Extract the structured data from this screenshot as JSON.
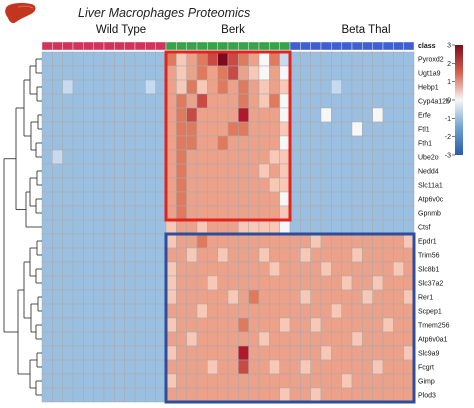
{
  "title": "Liver Macrophages Proteomics",
  "logo_icon": "liver-icon",
  "chart_data": {
    "type": "heatmap",
    "title": "Liver Macrophages Proteomics",
    "class_label": "class",
    "groups": [
      {
        "name": "Wild Type",
        "n": 12,
        "color": "#d1335b"
      },
      {
        "name": "Berk",
        "n": 12,
        "color": "#3aa14b"
      },
      {
        "name": "Beta Thal",
        "n": 12,
        "color": "#3f5fd0"
      }
    ],
    "rows": [
      "Pyroxd2",
      "Ugt1a9",
      "Hebp1",
      "Cyp4a12b",
      "Erfe",
      "Ftl1",
      "Fth1",
      "Ube2o",
      "Nedd4",
      "Slc11a1",
      "Atp6v0c",
      "Gpnmb",
      "Ctsf",
      "Epdr1",
      "Trim56",
      "Slc8b1",
      "Slc37a2",
      "Rer1",
      "Scpep1",
      "Tmem256",
      "Atp6v0a1",
      "Slc9a9",
      "Fcgrt",
      "Gimp",
      "Plod3"
    ],
    "colorscale": {
      "min": -3,
      "max": 3,
      "ticks": [
        3,
        2,
        1,
        0,
        -1,
        -2,
        -3
      ],
      "low": "#2b5aa8",
      "mid": "#f7f7f7",
      "high": "#7d0b1e"
    },
    "values": [
      [
        -1,
        -1,
        -1,
        -1,
        -1,
        -1,
        -1,
        -1,
        -1,
        -1,
        -1,
        -1,
        1.5,
        0.5,
        1,
        1.5,
        2,
        3,
        2,
        1.5,
        1,
        0,
        1.5,
        -0.5,
        -1,
        -1,
        -1,
        -1,
        -1,
        -1,
        -1,
        -1,
        -1,
        -1,
        -1,
        -1
      ],
      [
        -1,
        -1,
        -1,
        -1,
        -1,
        -1,
        -1,
        -1,
        -1,
        -1,
        -1,
        -1,
        1,
        0.5,
        1,
        1.5,
        1,
        1.5,
        2,
        1,
        0.5,
        0,
        1,
        0,
        -1,
        -1,
        -1,
        -1,
        -1,
        -1,
        -1,
        -1,
        -1,
        -1,
        -1,
        -1
      ],
      [
        -1,
        -1,
        -0.5,
        -1,
        -1,
        -1,
        -1,
        -1,
        -1,
        -1,
        -0.5,
        -1,
        1,
        0.5,
        1.5,
        0.5,
        1,
        1.5,
        1,
        1.5,
        1,
        0.5,
        1,
        0.5,
        -1,
        -1,
        -1,
        -1,
        -0.5,
        -1,
        -1,
        -1,
        -1,
        -1,
        -1,
        -1
      ],
      [
        -1,
        -1,
        -1,
        -1,
        -1,
        -1,
        -1,
        -1,
        -1,
        -1,
        -1,
        -1,
        1,
        1.5,
        1,
        2,
        1,
        1,
        1,
        1.5,
        1,
        0.5,
        1.5,
        0,
        -1,
        -1,
        -1,
        -1,
        -1,
        -1,
        -1,
        -1,
        -1,
        -1,
        -1,
        -1
      ],
      [
        -1,
        -1,
        -1,
        -1,
        -1,
        -1,
        -1,
        -1,
        -1,
        -1,
        -1,
        -1,
        1,
        1.5,
        2,
        1,
        1,
        1,
        1,
        2.5,
        1,
        1,
        1,
        0,
        -1,
        -1,
        -1,
        0,
        -1,
        -1,
        -1,
        -1,
        0,
        -1,
        -1,
        -1
      ],
      [
        -1,
        -1,
        -1,
        -1,
        -1,
        -1,
        -1,
        -1,
        -1,
        -1,
        -1,
        -1,
        1,
        1.5,
        1.5,
        1,
        1,
        1,
        1.5,
        1.5,
        1,
        1,
        1,
        0.5,
        -1,
        -1,
        -1,
        -1,
        -1,
        -1,
        0,
        -1,
        -1,
        -1,
        -1,
        -1
      ],
      [
        -1,
        -1,
        -1,
        -1,
        -1,
        -1,
        -1,
        -1,
        -1,
        -1,
        -1,
        -1,
        1,
        1.5,
        1.5,
        1,
        1,
        1.5,
        1,
        1,
        1,
        1,
        1,
        0,
        -1,
        -1,
        -1,
        -1,
        -1,
        -1,
        -1,
        -1,
        -1,
        -1,
        -1,
        -1
      ],
      [
        -1,
        -0.5,
        -1,
        -1,
        -1,
        -1,
        -1,
        -1,
        -1,
        -1,
        -1,
        -1,
        1,
        1.5,
        1,
        1,
        1,
        1,
        1,
        1,
        1,
        1,
        0.5,
        0.5,
        -1,
        -1,
        -1,
        -1,
        -1,
        -1,
        -1,
        -1,
        -1,
        -1,
        -1,
        -1
      ],
      [
        -1,
        -1,
        -1,
        -1,
        -1,
        -1,
        -1,
        -1,
        -1,
        -1,
        -1,
        -1,
        1,
        1.5,
        1,
        1,
        1,
        1,
        1,
        1,
        1,
        0.5,
        1,
        0.5,
        -1,
        -1,
        -1,
        -1,
        -1,
        -1,
        -1,
        -1,
        -1,
        -1,
        -1,
        -1
      ],
      [
        -1,
        -1,
        -1,
        -1,
        -1,
        -1,
        -1,
        -1,
        -1,
        -1,
        -1,
        -1,
        1,
        1.5,
        1,
        1,
        1,
        1,
        1,
        1,
        1,
        1,
        0.5,
        0.5,
        -1,
        -1,
        -1,
        -1,
        -1,
        -1,
        -1,
        -1,
        -1,
        -1,
        -1,
        -1
      ],
      [
        -1,
        -1,
        -1,
        -1,
        -1,
        -1,
        -1,
        -1,
        -1,
        -1,
        -1,
        -1,
        1,
        1.5,
        1,
        1,
        1,
        1,
        1,
        1,
        1,
        1,
        1,
        0,
        -1,
        -1,
        -1,
        -1,
        -1,
        -1,
        -1,
        -1,
        -1,
        -1,
        -1,
        -1
      ],
      [
        -1,
        -1,
        -1,
        -1,
        -1,
        -1,
        -1,
        -1,
        -1,
        -1,
        -1,
        -1,
        1,
        1.5,
        1,
        1,
        1,
        1,
        1,
        1,
        1,
        1,
        1,
        0.5,
        -1,
        -1,
        -1,
        -1,
        -1,
        -1,
        -1,
        -1,
        -1,
        -1,
        -1,
        -1
      ],
      [
        -1,
        -1,
        -1,
        -1,
        -1,
        -1,
        -1,
        -1,
        -1,
        -1,
        -1,
        -1,
        0.5,
        1,
        1,
        0.5,
        1,
        1,
        1,
        0.5,
        0.5,
        0.5,
        0.5,
        0,
        -1,
        -1,
        -1,
        -1,
        -1,
        -1,
        -1,
        -1,
        -1,
        -1,
        -1,
        -1
      ],
      [
        -1,
        -1,
        -1,
        -1,
        -1,
        -1,
        -1,
        -1,
        -1,
        -1,
        -1,
        -1,
        0.5,
        1,
        1,
        1.5,
        1,
        1,
        1,
        1,
        1,
        1,
        1,
        1,
        1,
        1,
        0.5,
        1,
        1,
        1,
        1,
        1,
        1,
        1,
        1,
        0.5
      ],
      [
        -1,
        -1,
        -1,
        -1,
        -1,
        -1,
        -1,
        -1,
        -1,
        -1,
        -1,
        -1,
        1,
        1,
        0.5,
        1,
        1,
        0.5,
        1,
        1,
        1,
        0.5,
        1,
        1,
        1,
        0.5,
        1,
        1,
        1,
        1,
        0.5,
        1,
        1,
        1,
        1,
        1
      ],
      [
        -1,
        -1,
        -1,
        -1,
        -1,
        -1,
        -1,
        -1,
        -1,
        -1,
        -1,
        -1,
        0.5,
        1,
        1,
        1,
        1,
        1,
        1,
        1,
        1,
        1,
        0.5,
        1,
        1,
        1,
        1,
        0.5,
        1,
        1,
        1,
        1,
        1,
        1,
        0.5,
        1
      ],
      [
        -1,
        -1,
        -1,
        -1,
        -1,
        -1,
        -1,
        -1,
        -1,
        -1,
        -1,
        -1,
        0.5,
        1,
        1,
        1,
        0.5,
        1,
        1,
        1,
        1,
        1,
        1,
        1,
        1,
        1,
        1,
        1,
        1,
        0.5,
        1,
        1,
        0.5,
        1,
        1,
        1
      ],
      [
        -1,
        -1,
        -1,
        -1,
        -1,
        -1,
        -1,
        -1,
        -1,
        -1,
        -1,
        -1,
        0.5,
        1,
        1,
        1,
        1,
        1,
        0.5,
        1,
        1.5,
        1,
        1,
        1,
        1,
        0.5,
        1,
        1,
        1,
        1,
        1,
        0.5,
        1,
        1,
        1,
        0.5
      ],
      [
        -1,
        -1,
        -1,
        -1,
        -1,
        -1,
        -1,
        -1,
        -1,
        -1,
        -1,
        -1,
        1,
        1,
        1,
        0.5,
        1,
        1,
        1,
        1,
        1,
        1,
        1,
        1,
        1,
        1,
        1,
        1,
        0.5,
        1,
        1,
        1,
        1,
        1,
        1,
        1
      ],
      [
        -1,
        -1,
        -1,
        -1,
        -1,
        -1,
        -1,
        -1,
        -1,
        -1,
        -1,
        -1,
        0.5,
        1,
        1,
        1,
        1,
        1,
        1,
        1.5,
        1,
        1,
        1,
        0.5,
        1,
        1,
        0.5,
        1,
        1,
        1,
        1,
        1,
        1,
        0.5,
        1,
        1
      ],
      [
        -1,
        -1,
        -1,
        -1,
        -1,
        -1,
        -1,
        -1,
        -1,
        -1,
        -1,
        -1,
        1,
        1,
        0.5,
        1,
        1,
        1,
        1,
        1,
        1,
        0.5,
        1,
        1,
        1,
        1,
        1,
        1,
        1,
        1,
        0.5,
        1,
        1,
        1,
        1,
        1
      ],
      [
        -1,
        -1,
        -1,
        -1,
        -1,
        -1,
        -1,
        -1,
        -1,
        -1,
        -1,
        -1,
        0.5,
        1,
        1,
        1,
        1,
        1,
        1,
        2.5,
        1,
        1,
        1,
        1,
        1,
        1,
        1,
        0.5,
        1,
        1,
        1,
        1,
        1,
        1,
        1,
        0.5
      ],
      [
        -1,
        -1,
        -1,
        -1,
        -1,
        -1,
        -1,
        -1,
        -1,
        -1,
        -1,
        -1,
        1,
        1,
        1,
        1,
        0.5,
        1,
        1,
        2,
        1,
        1,
        0.5,
        1,
        1,
        0.5,
        1,
        1,
        1,
        1,
        1,
        1,
        0.5,
        1,
        1,
        1
      ],
      [
        -1,
        -1,
        -1,
        -1,
        -1,
        -1,
        -1,
        -1,
        -1,
        -1,
        -1,
        -1,
        0.5,
        1,
        1,
        1,
        1,
        1,
        1,
        1,
        1,
        1,
        1,
        1,
        1,
        1,
        1,
        1,
        1,
        0.5,
        1,
        1,
        1,
        1,
        1,
        1
      ],
      [
        -1,
        -1,
        -1,
        -1,
        -1,
        -1,
        -1,
        -1,
        -1,
        -1,
        -1,
        -1,
        1,
        1,
        1,
        1,
        1,
        1,
        1,
        1,
        1,
        1,
        1,
        0.5,
        1,
        1,
        0.5,
        1,
        1,
        1,
        1,
        1,
        1,
        1,
        1,
        1
      ]
    ],
    "highlight_boxes": [
      {
        "color": "#e0241f",
        "cols": [
          12,
          24
        ],
        "rows": [
          0,
          12
        ]
      },
      {
        "color": "#2c4e9c",
        "cols": [
          12,
          36
        ],
        "rows": [
          13,
          25
        ]
      }
    ]
  }
}
